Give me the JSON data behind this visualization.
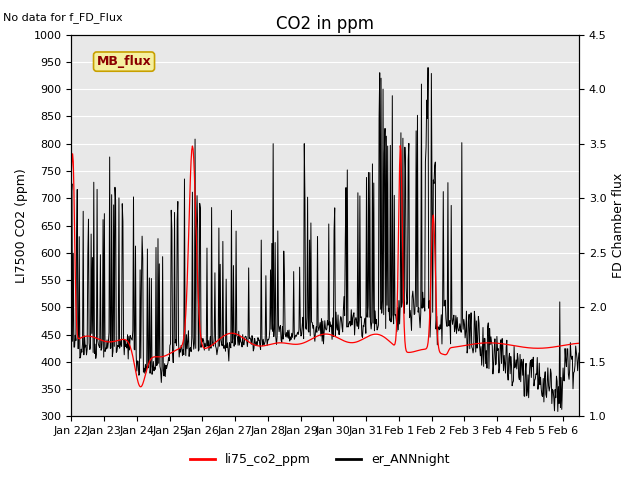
{
  "title": "CO2 in ppm",
  "top_left_text": "No data for f_FD_Flux",
  "mb_flux_label": "MB_flux",
  "ylabel_left": "LI7500 CO2 (ppm)",
  "ylabel_right": "FD Chamber flux",
  "ylim_left": [
    300,
    1000
  ],
  "ylim_right": [
    1.0,
    4.5
  ],
  "xlim": [
    0,
    15.5
  ],
  "xtick_labels": [
    "Jan 22",
    "Jan 23",
    "Jan 24",
    "Jan 25",
    "Jan 26",
    "Jan 27",
    "Jan 28",
    "Jan 29",
    "Jan 30",
    "Jan 31",
    "Feb 1",
    "Feb 2",
    "Feb 3",
    "Feb 4",
    "Feb 5",
    "Feb 6"
  ],
  "xtick_positions": [
    0,
    1,
    2,
    3,
    4,
    5,
    6,
    7,
    8,
    9,
    10,
    11,
    12,
    13,
    14,
    15
  ],
  "legend_labels": [
    "li75_co2_ppm",
    "er_ANNnight"
  ],
  "legend_colors": [
    "red",
    "black"
  ],
  "line_red_color": "red",
  "line_black_color": "black",
  "title_fontsize": 12,
  "axis_label_fontsize": 9,
  "tick_fontsize": 8
}
